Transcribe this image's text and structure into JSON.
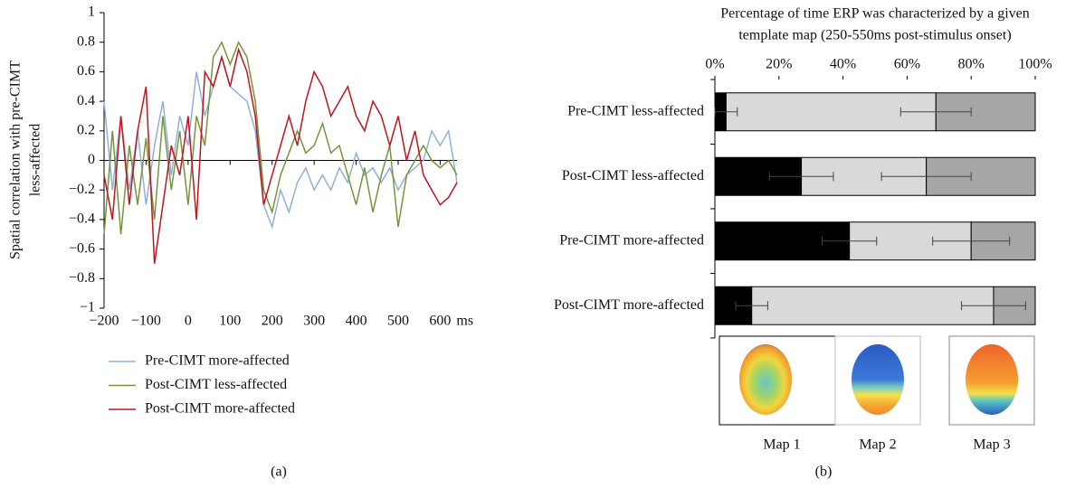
{
  "chart_data": [
    {
      "type": "line",
      "panel_label": "(a)",
      "ylabel": [
        "Spatial correlation with pre-CIMT",
        "less-affected"
      ],
      "xlabel": "ms",
      "x": [
        -200,
        -180,
        -160,
        -140,
        -120,
        -100,
        -80,
        -60,
        -40,
        -20,
        0,
        20,
        40,
        60,
        80,
        100,
        120,
        140,
        160,
        180,
        200,
        220,
        240,
        260,
        280,
        300,
        320,
        340,
        360,
        380,
        400,
        420,
        440,
        460,
        480,
        500,
        520,
        540,
        560,
        580,
        600,
        620,
        640
      ],
      "series": [
        {
          "name": "Pre-CIMT more-affected",
          "color": "#8fb0d8",
          "values": [
            0.4,
            -0.2,
            0.3,
            -0.2,
            0.2,
            -0.3,
            0.1,
            0.4,
            -0.1,
            0.3,
            0.1,
            0.6,
            0.3,
            0.5,
            0.7,
            0.5,
            0.45,
            0.4,
            0.2,
            -0.3,
            -0.45,
            -0.2,
            -0.35,
            -0.15,
            -0.05,
            -0.2,
            -0.1,
            -0.2,
            -0.05,
            -0.15,
            0.05,
            -0.1,
            -0.05,
            -0.15,
            -0.05,
            -0.2,
            -0.1,
            -0.05,
            0.0,
            0.2,
            0.1,
            0.2,
            -0.15
          ]
        },
        {
          "name": "Post-CIMT less-affected",
          "color": "#77933c",
          "values": [
            -0.5,
            0.2,
            -0.5,
            0.1,
            -0.3,
            0.15,
            -0.4,
            0.3,
            -0.2,
            0.2,
            -0.3,
            0.3,
            0.1,
            0.7,
            0.8,
            0.65,
            0.8,
            0.7,
            0.4,
            -0.2,
            -0.35,
            -0.1,
            0.05,
            0.2,
            0.05,
            0.1,
            0.25,
            0.05,
            0.1,
            -0.1,
            -0.3,
            -0.05,
            -0.35,
            -0.1,
            0.1,
            -0.45,
            -0.1,
            0.0,
            0.1,
            0.0,
            -0.05,
            0.0,
            -0.1
          ]
        },
        {
          "name": "Post-CIMT more-affected",
          "color": "#c0141e",
          "values": [
            -0.1,
            -0.4,
            0.3,
            -0.3,
            0.2,
            0.5,
            -0.7,
            -0.3,
            0.1,
            -0.1,
            0.3,
            -0.4,
            0.6,
            0.5,
            0.7,
            0.5,
            0.75,
            0.6,
            0.3,
            -0.3,
            -0.1,
            0.1,
            0.3,
            0.1,
            0.4,
            0.6,
            0.5,
            0.3,
            0.4,
            0.5,
            0.3,
            0.2,
            0.4,
            0.3,
            0.1,
            0.3,
            0.0,
            0.2,
            -0.1,
            -0.2,
            -0.3,
            -0.25,
            -0.15
          ]
        }
      ],
      "xlim": [
        -200,
        640
      ],
      "xticks": [
        {
          "value": -200,
          "label": "−200"
        },
        {
          "value": -100,
          "label": "−100"
        },
        0,
        100,
        200,
        300,
        400,
        500,
        600
      ],
      "ylim": [
        -1,
        1
      ],
      "yticks": [
        {
          "value": -1,
          "label": "−1"
        },
        {
          "value": -0.8,
          "label": "−0.8"
        },
        {
          "value": -0.6,
          "label": "−0.6"
        },
        {
          "value": -0.4,
          "label": "−0.4"
        },
        {
          "value": -0.2,
          "label": "−0.2"
        },
        0,
        0.2,
        0.4,
        0.6,
        0.8,
        1
      ]
    },
    {
      "type": "stacked-bar-horizontal",
      "panel_label": "(b)",
      "title": [
        "Percentage of time ERP was characterized by a given",
        "template map (250-550ms post-stimulus onset)"
      ],
      "categories": [
        "Pre-CIMT less-affected",
        "Post-CIMT less-affected",
        "Pre-CIMT more-affected",
        "Post-CIMT more-affected"
      ],
      "series": [
        {
          "name": "Map 1",
          "color": "#000000",
          "values": [
            3.5,
            27,
            42,
            11.5
          ],
          "errors": [
            3.5,
            10,
            8.5,
            5
          ]
        },
        {
          "name": "Map 2",
          "color": "#d9d9d9",
          "values": [
            65.5,
            39,
            38,
            75.5
          ],
          "errors": [
            11,
            14,
            12,
            10
          ]
        },
        {
          "name": "Map 3",
          "color": "#a6a6a6",
          "values": [
            31,
            34,
            20,
            13
          ]
        }
      ],
      "xlim": [
        0,
        100
      ],
      "xticks": [
        {
          "value": 0,
          "label": "0%"
        },
        {
          "value": 20,
          "label": "20%"
        },
        {
          "value": 40,
          "label": "40%"
        },
        {
          "value": 60,
          "label": "60%"
        },
        {
          "value": 80,
          "label": "80%"
        },
        {
          "value": 100,
          "label": "100%"
        }
      ]
    }
  ]
}
